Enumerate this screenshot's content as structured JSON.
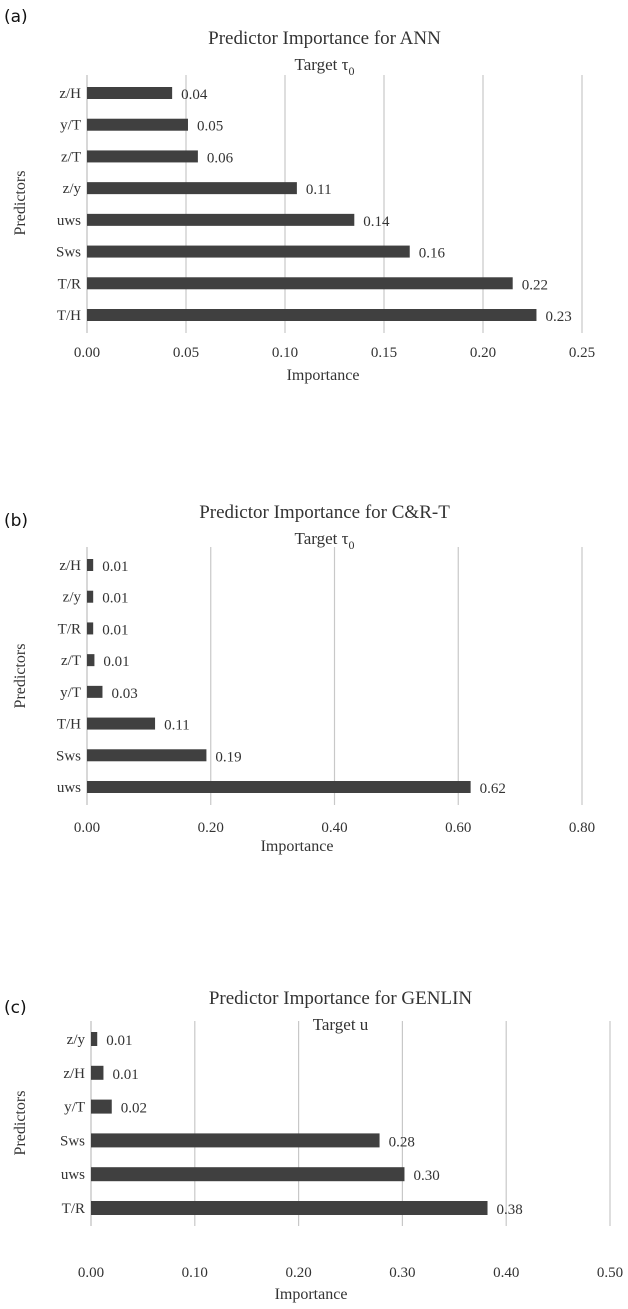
{
  "chart_data": [
    {
      "type": "bar",
      "orientation": "horizontal",
      "panel": "(a)",
      "title": "Predictor Importance for ANN",
      "subtitle_text": "Target τ",
      "subtitle_subscript": "0",
      "xlabel": "Importance",
      "ylabel": "Predictors",
      "xlim": [
        0,
        0.25
      ],
      "xticks": [
        "0.00",
        "0.05",
        "0.10",
        "0.15",
        "0.20",
        "0.25"
      ],
      "categories": [
        "z/H",
        "y/T",
        "z/T",
        "z/y",
        "uws",
        "Sws",
        "T/R",
        "T/H"
      ],
      "values": [
        0.043,
        0.051,
        0.056,
        0.106,
        0.135,
        0.163,
        0.215,
        0.227
      ],
      "value_labels": [
        "0.04",
        "0.05",
        "0.06",
        "0.11",
        "0.14",
        "0.16",
        "0.22",
        "0.23"
      ],
      "grid": true,
      "bar_color": "#404040"
    },
    {
      "type": "bar",
      "orientation": "horizontal",
      "panel": "(b)",
      "title": "Predictor Importance for C&R-T",
      "subtitle_text": "Target τ",
      "subtitle_subscript": "0",
      "xlabel": "Importance",
      "ylabel": "Predictors",
      "xlim": [
        0,
        0.8
      ],
      "xticks": [
        "0.00",
        "0.20",
        "0.40",
        "0.60",
        "0.80"
      ],
      "categories": [
        "z/H",
        "z/y",
        "T/R",
        "z/T",
        "y/T",
        "T/H",
        "Sws",
        "uws"
      ],
      "values": [
        0.01,
        0.01,
        0.01,
        0.012,
        0.025,
        0.11,
        0.193,
        0.62
      ],
      "value_labels": [
        "0.01",
        "0.01",
        "0.01",
        "0.01",
        "0.03",
        "0.11",
        "0.19",
        "0.62"
      ],
      "grid": true,
      "bar_color": "#404040"
    },
    {
      "type": "bar",
      "orientation": "horizontal",
      "panel": "(c)",
      "title": "Predictor Importance for GENLIN",
      "subtitle_text": "Target u",
      "subtitle_subscript": "",
      "xlabel": "Importance",
      "ylabel": "Predictors",
      "xlim": [
        0,
        0.5
      ],
      "xticks": [
        "0.00",
        "0.10",
        "0.20",
        "0.30",
        "0.40",
        "0.50"
      ],
      "categories": [
        "z/y",
        "z/H",
        "y/T",
        "Sws",
        "uws",
        "T/R"
      ],
      "values": [
        0.006,
        0.012,
        0.02,
        0.278,
        0.302,
        0.382
      ],
      "value_labels": [
        "0.01",
        "0.01",
        "0.02",
        "0.28",
        "0.30",
        "0.38"
      ],
      "grid": true,
      "bar_color": "#404040"
    }
  ]
}
